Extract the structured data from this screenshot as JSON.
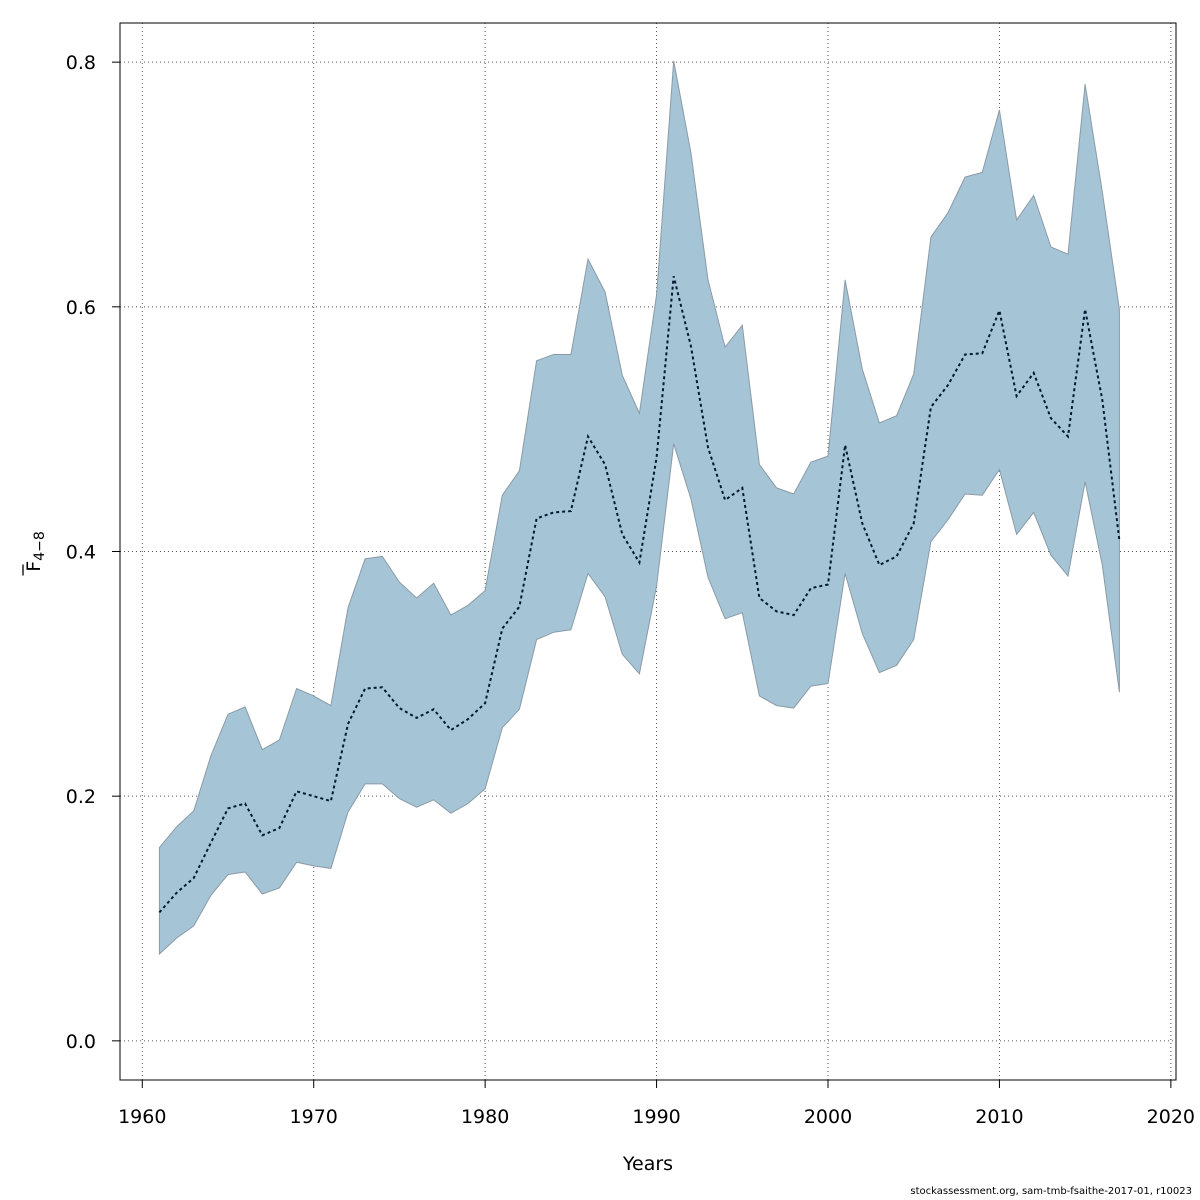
{
  "chart_data": {
    "type": "area",
    "title": "",
    "xlabel": "Years",
    "ylabel": "F̄4−8",
    "ylabel_main": "F",
    "ylabel_sub": "4−8",
    "xlim": [
      1958.7,
      2020.3
    ],
    "ylim": [
      -0.032,
      0.832
    ],
    "x_ticks": [
      1960,
      1970,
      1980,
      1990,
      2000,
      2010,
      2020
    ],
    "y_ticks": [
      0.0,
      0.2,
      0.4,
      0.6,
      0.8
    ],
    "x_tick_labels": [
      "1960",
      "1970",
      "1980",
      "1990",
      "2000",
      "2010",
      "2020"
    ],
    "y_tick_labels": [
      "0.0",
      "0.2",
      "0.4",
      "0.6",
      "0.8"
    ],
    "grid": true,
    "x": [
      1961,
      1962,
      1963,
      1964,
      1965,
      1966,
      1967,
      1968,
      1969,
      1970,
      1971,
      1972,
      1973,
      1974,
      1975,
      1976,
      1977,
      1978,
      1979,
      1980,
      1981,
      1982,
      1983,
      1984,
      1985,
      1986,
      1987,
      1988,
      1989,
      1990,
      1991,
      1992,
      1993,
      1994,
      1995,
      1996,
      1997,
      1998,
      1999,
      2000,
      2001,
      2002,
      2003,
      2004,
      2005,
      2006,
      2007,
      2008,
      2009,
      2010,
      2011,
      2012,
      2013,
      2014,
      2015,
      2016,
      2017
    ],
    "estimate": [
      0.105,
      0.121,
      0.133,
      0.162,
      0.19,
      0.194,
      0.168,
      0.174,
      0.204,
      0.2,
      0.196,
      0.259,
      0.288,
      0.289,
      0.272,
      0.264,
      0.271,
      0.254,
      0.263,
      0.276,
      0.337,
      0.355,
      0.427,
      0.432,
      0.433,
      0.494,
      0.471,
      0.414,
      0.391,
      0.477,
      0.625,
      0.568,
      0.485,
      0.442,
      0.452,
      0.362,
      0.351,
      0.348,
      0.37,
      0.373,
      0.487,
      0.423,
      0.389,
      0.396,
      0.423,
      0.518,
      0.536,
      0.561,
      0.562,
      0.597,
      0.527,
      0.546,
      0.509,
      0.494,
      0.598,
      0.524,
      0.409
    ],
    "upper": [
      0.158,
      0.175,
      0.188,
      0.233,
      0.267,
      0.273,
      0.238,
      0.246,
      0.288,
      0.282,
      0.274,
      0.354,
      0.394,
      0.396,
      0.375,
      0.362,
      0.374,
      0.348,
      0.356,
      0.368,
      0.446,
      0.466,
      0.556,
      0.561,
      0.561,
      0.639,
      0.612,
      0.544,
      0.513,
      0.61,
      0.801,
      0.726,
      0.622,
      0.567,
      0.585,
      0.471,
      0.452,
      0.447,
      0.473,
      0.478,
      0.622,
      0.549,
      0.505,
      0.511,
      0.545,
      0.657,
      0.677,
      0.706,
      0.71,
      0.761,
      0.671,
      0.691,
      0.649,
      0.643,
      0.782,
      0.694,
      0.598
    ],
    "lower": [
      0.071,
      0.084,
      0.094,
      0.119,
      0.136,
      0.138,
      0.12,
      0.125,
      0.146,
      0.143,
      0.141,
      0.187,
      0.21,
      0.21,
      0.198,
      0.191,
      0.197,
      0.186,
      0.194,
      0.206,
      0.256,
      0.271,
      0.328,
      0.334,
      0.336,
      0.382,
      0.363,
      0.316,
      0.3,
      0.372,
      0.488,
      0.443,
      0.379,
      0.345,
      0.35,
      0.282,
      0.274,
      0.272,
      0.29,
      0.292,
      0.382,
      0.333,
      0.301,
      0.307,
      0.328,
      0.408,
      0.426,
      0.447,
      0.446,
      0.467,
      0.414,
      0.432,
      0.397,
      0.38,
      0.457,
      0.389,
      0.285
    ],
    "colors": {
      "band_fill": "#a5c4d6",
      "band_stroke": "#8a9ba6",
      "line": "#001a33",
      "grid": "#555555"
    }
  },
  "footer": {
    "text": "stockassessment.org, sam-tmb-fsaithe-2017-01, r10023"
  }
}
